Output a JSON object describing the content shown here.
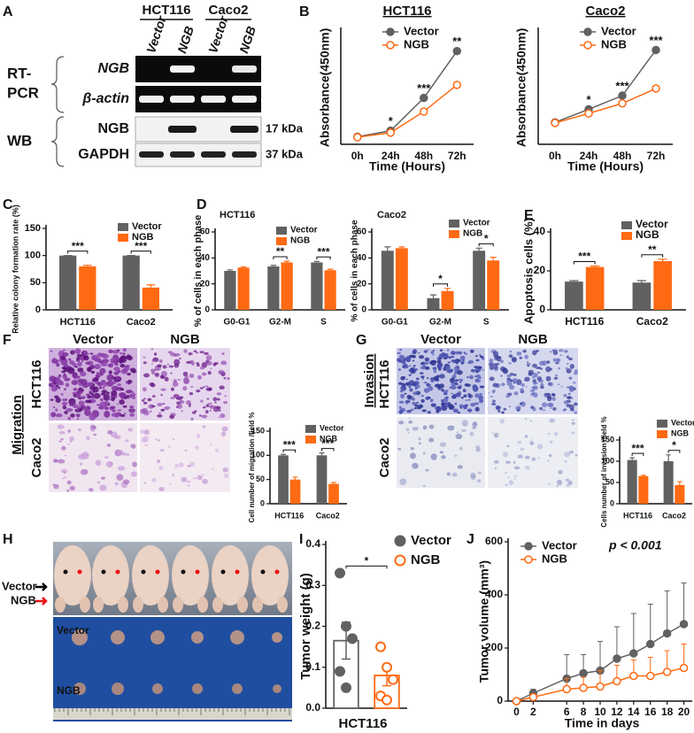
{
  "panel_labels": [
    "A",
    "B",
    "C",
    "D",
    "E",
    "F",
    "G",
    "H",
    "I",
    "J"
  ],
  "blot": {
    "cell_lines": [
      "HCT116",
      "Caco2"
    ],
    "lanes": [
      "Vector",
      "NGB",
      "Vector",
      "NGB"
    ],
    "method_labels": {
      "rt_pcr": [
        "RT-",
        "PCR"
      ],
      "wb": "WB"
    },
    "rows": [
      "NGB",
      "β-actin",
      "NGB",
      "GAPDH"
    ],
    "sizes": [
      "17 kDa",
      "37 kDa"
    ]
  },
  "migration": {
    "assay": "Migration",
    "columns": [
      "Vector",
      "NGB"
    ],
    "rows": [
      "HCT116",
      "Caco2"
    ]
  },
  "invasion": {
    "assay": "Invasion",
    "columns": [
      "Vector",
      "NGB"
    ],
    "rows": [
      "HCT116",
      "Caco2"
    ]
  },
  "xenograft": {
    "arrow_labels": [
      "Vector",
      "NGB"
    ],
    "tumor_rows": [
      "Vector",
      "NGB"
    ]
  },
  "chart_data": [
    {
      "type": "line",
      "title": "HCT116",
      "categories": [
        "0h",
        "24h",
        "48h",
        "72h"
      ],
      "xlabel": "Time (Hours)",
      "ylabel": "Absorbance(450nm)",
      "ylim": [
        0.1,
        2.35
      ],
      "series": [
        {
          "name": "Vector",
          "color": "#616161",
          "marker": "filled",
          "values": [
            0.25,
            0.37,
            1.02,
            1.95
          ]
        },
        {
          "name": "NGB",
          "color": "#ff6a13",
          "marker": "open",
          "values": [
            0.24,
            0.33,
            0.75,
            1.28
          ]
        }
      ],
      "significance": [
        null,
        "*",
        "***",
        "**"
      ]
    },
    {
      "type": "line",
      "title": "Caco2",
      "categories": [
        "0h",
        "24h",
        "48h",
        "72h"
      ],
      "xlabel": "Time (Hours)",
      "ylabel": "Absorbance(450nm)",
      "ylim": [
        0.03,
        1.94
      ],
      "series": [
        {
          "name": "Vector",
          "color": "#616161",
          "marker": "filled",
          "values": [
            0.4,
            0.62,
            0.85,
            1.62
          ]
        },
        {
          "name": "NGB",
          "color": "#ff6a13",
          "marker": "open",
          "values": [
            0.39,
            0.55,
            0.72,
            0.97
          ]
        }
      ],
      "significance": [
        null,
        "*",
        "***",
        "***"
      ]
    },
    {
      "type": "bar",
      "categories": [
        "HCT116",
        "Caco2"
      ],
      "ylabel": "Relative colony formation rate (%)",
      "ylim": [
        0,
        150
      ],
      "yticks": [
        0,
        50,
        100,
        150
      ],
      "series": [
        {
          "name": "Vector",
          "color": "#616161",
          "values": [
            100,
            100
          ],
          "errors": [
            0,
            0
          ]
        },
        {
          "name": "NGB",
          "color": "#ff6a13",
          "values": [
            80,
            41
          ],
          "errors": [
            2,
            5
          ]
        }
      ],
      "significance": [
        "***",
        "***"
      ]
    },
    {
      "type": "bar",
      "title": "HCT116",
      "categories": [
        "G0-G1",
        "G2-M",
        "S"
      ],
      "ylabel": "% of cells in each phase",
      "ylim": [
        0,
        60
      ],
      "yticks": [
        0,
        20,
        40,
        60
      ],
      "series": [
        {
          "name": "Vector",
          "color": "#616161",
          "values": [
            30,
            33.5,
            36.5
          ],
          "errors": [
            0.8,
            0.8,
            0.8
          ]
        },
        {
          "name": "NGB",
          "color": "#ff6a13",
          "values": [
            32.5,
            36.5,
            30.5
          ],
          "errors": [
            0.5,
            1,
            0.8
          ]
        }
      ],
      "significance": [
        null,
        "**",
        "***"
      ]
    },
    {
      "type": "bar",
      "title": "Caco2",
      "categories": [
        "G0-G1",
        "G2-M",
        "S"
      ],
      "ylabel": "% of cells in each phase",
      "ylim": [
        0,
        60
      ],
      "yticks": [
        0,
        20,
        40,
        60
      ],
      "series": [
        {
          "name": "Vector",
          "color": "#616161",
          "values": [
            45.5,
            9,
            45.5
          ],
          "errors": [
            3,
            2.5,
            2
          ]
        },
        {
          "name": "NGB",
          "color": "#ff6a13",
          "values": [
            47.5,
            14.5,
            38
          ],
          "errors": [
            1,
            2,
            2.5
          ]
        }
      ],
      "significance": [
        null,
        "*",
        "*"
      ]
    },
    {
      "type": "bar",
      "categories": [
        "HCT116",
        "Caco2"
      ],
      "ylabel": "Apoptosis cells (%)",
      "ylim": [
        0,
        40
      ],
      "yticks": [
        0,
        20,
        40
      ],
      "series": [
        {
          "name": "Vector",
          "color": "#616161",
          "values": [
            14.5,
            14
          ],
          "errors": [
            0.5,
            1
          ]
        },
        {
          "name": "NGB",
          "color": "#ff6a13",
          "values": [
            22,
            25
          ],
          "errors": [
            0.5,
            1
          ]
        }
      ],
      "significance": [
        "***",
        "**"
      ]
    },
    {
      "type": "bar",
      "categories": [
        "HCT116",
        "Caco2"
      ],
      "ylabel": "Cell number of migration /field %",
      "ylim": [
        0,
        150
      ],
      "yticks": [
        0,
        50,
        100,
        150
      ],
      "series": [
        {
          "name": "Vector",
          "color": "#616161",
          "values": [
            100,
            100
          ],
          "errors": [
            2,
            5
          ]
        },
        {
          "name": "NGB",
          "color": "#ff6a13",
          "values": [
            50,
            41
          ],
          "errors": [
            5,
            3
          ]
        }
      ],
      "significance": [
        "***",
        "***"
      ]
    },
    {
      "type": "bar",
      "categories": [
        "HCT116",
        "Caco2"
      ],
      "ylabel": "Cells number of invasion /field %",
      "ylim": [
        0,
        150
      ],
      "yticks": [
        0,
        50,
        100,
        150
      ],
      "series": [
        {
          "name": "Vector",
          "color": "#616161",
          "values": [
            103,
            100
          ],
          "errors": [
            5,
            15
          ]
        },
        {
          "name": "NGB",
          "color": "#ff6a13",
          "values": [
            65,
            44
          ],
          "errors": [
            2,
            8
          ]
        }
      ],
      "significance": [
        "***",
        "*"
      ]
    },
    {
      "type": "dotplot",
      "xlabel": "HCT116",
      "ylabel": "Tumor weight (g)",
      "ylim": [
        0,
        0.4
      ],
      "yticks": [
        {
          "value": 0,
          "label": "0.0"
        },
        0.1,
        0.2,
        0.3,
        0.4
      ],
      "series": [
        {
          "name": "Vector",
          "color": "#616161",
          "marker": "filled",
          "mean": 0.165,
          "error": 0.045,
          "values": [
            0.33,
            0.2,
            0.17,
            0.09,
            0.05
          ]
        },
        {
          "name": "NGB",
          "color": "#ff6a13",
          "marker": "open",
          "mean": 0.08,
          "error": 0.025,
          "values": [
            0.15,
            0.1,
            0.07,
            0.03,
            0.02
          ]
        }
      ],
      "significance": "*"
    },
    {
      "type": "line",
      "x": [
        0,
        2,
        6,
        8,
        10,
        12,
        14,
        16,
        18,
        20
      ],
      "xlabel": "Time in days",
      "ylabel": "Tumor volume (mm³)",
      "xlim": [
        -1,
        21
      ],
      "xticks": [
        0,
        2,
        6,
        8,
        10,
        12,
        14,
        16,
        18,
        20
      ],
      "ylim": [
        0,
        600
      ],
      "yticks": [
        0,
        200,
        400,
        600
      ],
      "series": [
        {
          "name": "Vector",
          "color": "#616161",
          "marker": "filled",
          "values": [
            0,
            30,
            85,
            105,
            115,
            160,
            180,
            215,
            255,
            290
          ],
          "errors": [
            0,
            15,
            90,
            70,
            110,
            120,
            150,
            150,
            160,
            155
          ]
        },
        {
          "name": "NGB",
          "color": "#ff6a13",
          "marker": "open",
          "values": [
            0,
            15,
            45,
            50,
            55,
            75,
            95,
            95,
            110,
            125
          ],
          "errors": [
            0,
            8,
            40,
            40,
            60,
            60,
            60,
            70,
            80,
            90
          ]
        }
      ],
      "annotation": "p < 0.001"
    }
  ]
}
